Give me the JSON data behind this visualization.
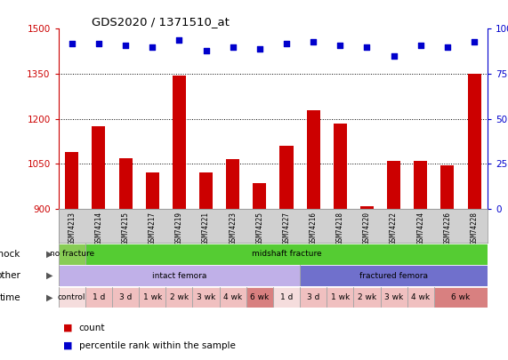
{
  "title": "GDS2020 / 1371510_at",
  "samples": [
    "GSM74213",
    "GSM74214",
    "GSM74215",
    "GSM74217",
    "GSM74219",
    "GSM74221",
    "GSM74223",
    "GSM74225",
    "GSM74227",
    "GSM74216",
    "GSM74218",
    "GSM74220",
    "GSM74222",
    "GSM74224",
    "GSM74226",
    "GSM74228"
  ],
  "bar_values": [
    1090,
    1175,
    1070,
    1020,
    1345,
    1020,
    1065,
    985,
    1110,
    1230,
    1185,
    910,
    1060,
    1060,
    1045,
    1350
  ],
  "percentile_values": [
    92,
    92,
    91,
    90,
    94,
    88,
    90,
    89,
    92,
    93,
    91,
    90,
    85,
    91,
    90,
    93
  ],
  "ylim_left": [
    900,
    1500
  ],
  "ylim_right": [
    0,
    100
  ],
  "yticks_left": [
    900,
    1050,
    1200,
    1350,
    1500
  ],
  "yticks_right": [
    0,
    25,
    50,
    75,
    100
  ],
  "bar_color": "#cc0000",
  "dot_color": "#0000cc",
  "shock_segs": [
    {
      "text": "no fracture",
      "start": 0,
      "end": 1,
      "color": "#88cc55"
    },
    {
      "text": "midshaft fracture",
      "start": 1,
      "end": 16,
      "color": "#55cc33"
    }
  ],
  "other_segs": [
    {
      "text": "intact femora",
      "start": 0,
      "end": 9,
      "color": "#c0b0e8"
    },
    {
      "text": "fractured femora",
      "start": 9,
      "end": 16,
      "color": "#7070cc"
    }
  ],
  "time_segs": [
    {
      "text": "control",
      "start": 0,
      "end": 1,
      "color": "#f5dddd"
    },
    {
      "text": "1 d",
      "start": 1,
      "end": 2,
      "color": "#f0c0c0"
    },
    {
      "text": "3 d",
      "start": 2,
      "end": 3,
      "color": "#f0c0c0"
    },
    {
      "text": "1 wk",
      "start": 3,
      "end": 4,
      "color": "#f0c0c0"
    },
    {
      "text": "2 wk",
      "start": 4,
      "end": 5,
      "color": "#f0c0c0"
    },
    {
      "text": "3 wk",
      "start": 5,
      "end": 6,
      "color": "#f0c0c0"
    },
    {
      "text": "4 wk",
      "start": 6,
      "end": 7,
      "color": "#f0c0c0"
    },
    {
      "text": "6 wk",
      "start": 7,
      "end": 8,
      "color": "#d88080"
    },
    {
      "text": "1 d",
      "start": 8,
      "end": 9,
      "color": "#f5dddd"
    },
    {
      "text": "3 d",
      "start": 9,
      "end": 10,
      "color": "#f0c0c0"
    },
    {
      "text": "1 wk",
      "start": 10,
      "end": 11,
      "color": "#f0c0c0"
    },
    {
      "text": "2 wk",
      "start": 11,
      "end": 12,
      "color": "#f0c0c0"
    },
    {
      "text": "3 wk",
      "start": 12,
      "end": 13,
      "color": "#f0c0c0"
    },
    {
      "text": "4 wk",
      "start": 13,
      "end": 14,
      "color": "#f0c0c0"
    },
    {
      "text": "6 wk",
      "start": 14,
      "end": 16,
      "color": "#d88080"
    }
  ],
  "row_labels": [
    "shock",
    "other",
    "time"
  ],
  "bg_color": "#ffffff",
  "axis_color_left": "#cc0000",
  "axis_color_right": "#0000cc",
  "names_bg": "#d0d0d0",
  "grid_color": "#000000"
}
